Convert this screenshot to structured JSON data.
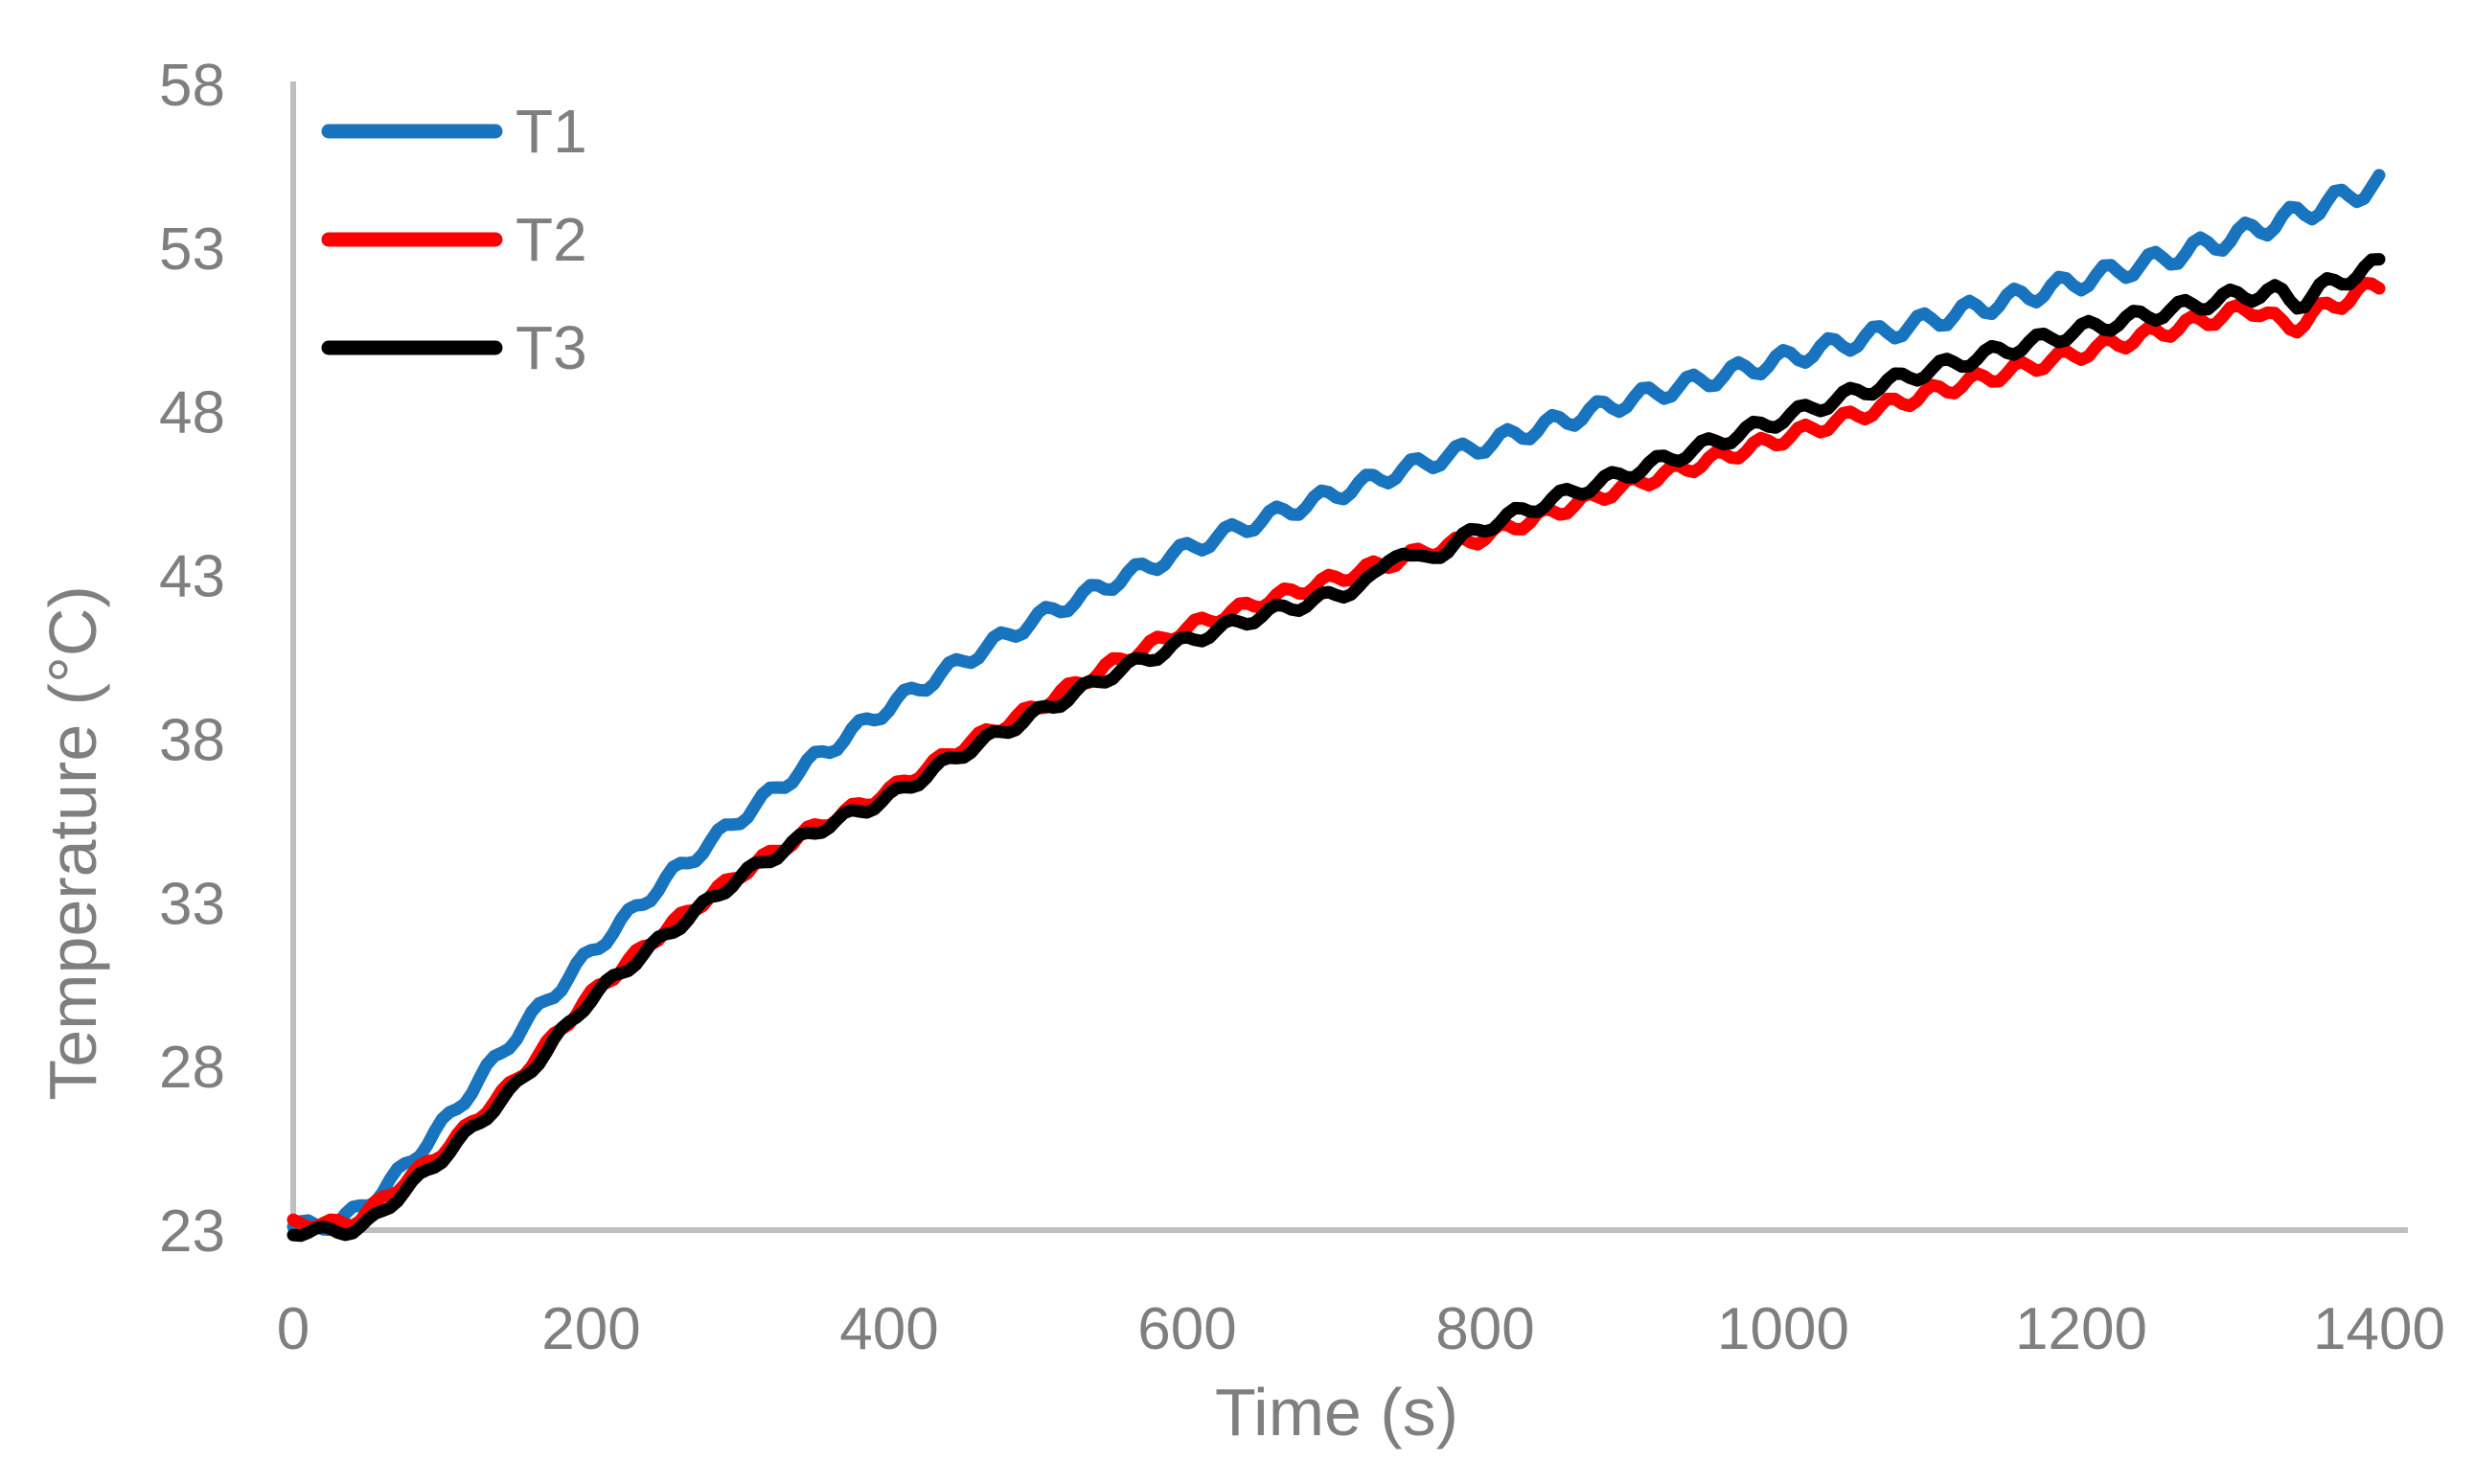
{
  "chart_data": {
    "type": "line",
    "title": "",
    "xlabel": "Time (s)",
    "ylabel": "Temperature (°C)",
    "xlim": [
      0,
      1400
    ],
    "ylim": [
      23,
      58
    ],
    "x_ticks": [
      0,
      200,
      400,
      600,
      800,
      1000,
      1200,
      1400
    ],
    "y_ticks": [
      23,
      28,
      33,
      38,
      43,
      48,
      53,
      58
    ],
    "grid": false,
    "legend_position": "top-left-inside",
    "axis_line_color": "#bfbfbf",
    "label_color": "#7f7f7f",
    "series": [
      {
        "name": "T1",
        "color": "#1874be",
        "oscillation": {
          "period_s": 31,
          "amplitude_start": 0.18,
          "amplitude_end": 0.32,
          "phase": 0.0
        },
        "points": [
          [
            0,
            23.1
          ],
          [
            30,
            23.2
          ],
          [
            60,
            24.2
          ],
          [
            100,
            26.2
          ],
          [
            150,
            29.0
          ],
          [
            200,
            31.5
          ],
          [
            250,
            33.7
          ],
          [
            300,
            35.6
          ],
          [
            350,
            37.4
          ],
          [
            400,
            39.0
          ],
          [
            450,
            40.4
          ],
          [
            500,
            41.7
          ],
          [
            550,
            42.8
          ],
          [
            600,
            43.8
          ],
          [
            650,
            44.7
          ],
          [
            700,
            45.5
          ],
          [
            750,
            46.3
          ],
          [
            800,
            47.0
          ],
          [
            850,
            47.7
          ],
          [
            900,
            48.4
          ],
          [
            950,
            49.0
          ],
          [
            1000,
            49.6
          ],
          [
            1050,
            50.2
          ],
          [
            1100,
            50.8
          ],
          [
            1150,
            51.4
          ],
          [
            1200,
            52.0
          ],
          [
            1250,
            52.6
          ],
          [
            1300,
            53.3
          ],
          [
            1350,
            54.1
          ],
          [
            1400,
            54.95
          ]
        ]
      },
      {
        "name": "T2",
        "color": "#fe0000",
        "oscillation": {
          "period_s": 29,
          "amplitude_start": 0.13,
          "amplitude_end": 0.24,
          "phase": 2.0
        },
        "points": [
          [
            0,
            23.2
          ],
          [
            40,
            23.2
          ],
          [
            70,
            24.3
          ],
          [
            100,
            25.4
          ],
          [
            150,
            27.6
          ],
          [
            200,
            30.2
          ],
          [
            250,
            32.2
          ],
          [
            300,
            33.9
          ],
          [
            350,
            35.3
          ],
          [
            400,
            36.4
          ],
          [
            450,
            37.8
          ],
          [
            500,
            39.0
          ],
          [
            550,
            40.3
          ],
          [
            600,
            41.4
          ],
          [
            650,
            42.2
          ],
          [
            700,
            42.9
          ],
          [
            750,
            43.6
          ],
          [
            800,
            44.2
          ],
          [
            850,
            45.0
          ],
          [
            900,
            45.8
          ],
          [
            950,
            46.5
          ],
          [
            1000,
            47.2
          ],
          [
            1050,
            47.9
          ],
          [
            1100,
            48.6
          ],
          [
            1150,
            49.2
          ],
          [
            1200,
            49.8
          ],
          [
            1250,
            50.4
          ],
          [
            1300,
            51.0
          ],
          [
            1322,
            51.2
          ],
          [
            1338,
            50.4
          ],
          [
            1352,
            50.9
          ],
          [
            1400,
            51.9
          ]
        ]
      },
      {
        "name": "T3",
        "color": "#000000",
        "oscillation": {
          "period_s": 32,
          "amplitude_start": 0.13,
          "amplitude_end": 0.24,
          "phase": 4.0
        },
        "points": [
          [
            0,
            22.95
          ],
          [
            45,
            23.0
          ],
          [
            75,
            24.2
          ],
          [
            100,
            25.2
          ],
          [
            150,
            27.4
          ],
          [
            200,
            30.1
          ],
          [
            250,
            32.0
          ],
          [
            300,
            33.8
          ],
          [
            350,
            35.2
          ],
          [
            400,
            36.2
          ],
          [
            450,
            37.6
          ],
          [
            500,
            38.8
          ],
          [
            550,
            40.0
          ],
          [
            600,
            41.0
          ],
          [
            650,
            41.8
          ],
          [
            700,
            42.4
          ],
          [
            728,
            42.9
          ],
          [
            740,
            44.0
          ],
          [
            754,
            43.3
          ],
          [
            800,
            44.5
          ],
          [
            850,
            45.4
          ],
          [
            900,
            46.2
          ],
          [
            950,
            47.0
          ],
          [
            1000,
            47.8
          ],
          [
            1050,
            48.6
          ],
          [
            1100,
            49.3
          ],
          [
            1150,
            49.9
          ],
          [
            1200,
            50.5
          ],
          [
            1250,
            51.0
          ],
          [
            1300,
            51.5
          ],
          [
            1330,
            51.7
          ],
          [
            1346,
            51.25
          ],
          [
            1362,
            51.8
          ],
          [
            1400,
            52.5
          ]
        ]
      }
    ],
    "legend": [
      {
        "label": "T1",
        "color": "#1874be"
      },
      {
        "label": "T2",
        "color": "#fe0000"
      },
      {
        "label": "T3",
        "color": "#000000"
      }
    ]
  }
}
